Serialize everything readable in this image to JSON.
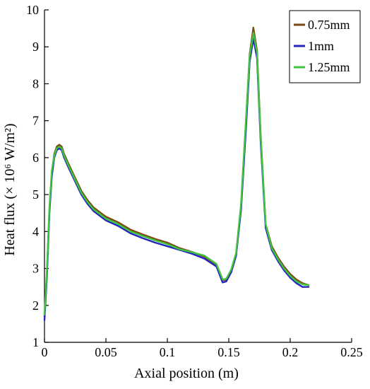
{
  "chart_data": {
    "type": "line",
    "xlabel": "Axial position (m)",
    "ylabel": "Heat flux (× 10⁶ W/m²)",
    "xlim": [
      0,
      0.25
    ],
    "ylim": [
      1,
      10
    ],
    "xticks": [
      0,
      0.05,
      0.1,
      0.15,
      0.2,
      0.25
    ],
    "xtick_labels": [
      "0",
      "0.05",
      "0.1",
      "0.15",
      "0.2",
      "0.25"
    ],
    "yticks": [
      1,
      2,
      3,
      4,
      5,
      6,
      7,
      8,
      9,
      10
    ],
    "ytick_labels": [
      "1",
      "2",
      "3",
      "4",
      "5",
      "6",
      "7",
      "8",
      "9",
      "10"
    ],
    "legend_position": "top-right",
    "series": [
      {
        "name": "0.75mm",
        "color": "#7b4a12",
        "x": [
          0,
          0.002,
          0.004,
          0.006,
          0.008,
          0.01,
          0.012,
          0.014,
          0.016,
          0.02,
          0.025,
          0.03,
          0.035,
          0.04,
          0.05,
          0.06,
          0.07,
          0.08,
          0.09,
          0.1,
          0.11,
          0.12,
          0.13,
          0.14,
          0.145,
          0.148,
          0.152,
          0.156,
          0.16,
          0.164,
          0.167,
          0.17,
          0.173,
          0.176,
          0.18,
          0.185,
          0.19,
          0.195,
          0.2,
          0.205,
          0.21,
          0.215
        ],
        "y": [
          1.7,
          2.9,
          4.6,
          5.6,
          6.1,
          6.3,
          6.35,
          6.3,
          6.1,
          5.8,
          5.45,
          5.1,
          4.85,
          4.65,
          4.4,
          4.25,
          4.05,
          3.92,
          3.8,
          3.7,
          3.55,
          3.45,
          3.32,
          3.1,
          2.68,
          2.7,
          2.95,
          3.4,
          4.7,
          7.0,
          8.8,
          9.52,
          8.9,
          6.6,
          4.2,
          3.6,
          3.3,
          3.05,
          2.85,
          2.7,
          2.6,
          2.55
        ]
      },
      {
        "name": "1mm",
        "color": "#2424c0",
        "x": [
          0,
          0.002,
          0.004,
          0.006,
          0.008,
          0.01,
          0.012,
          0.014,
          0.016,
          0.02,
          0.025,
          0.03,
          0.035,
          0.04,
          0.05,
          0.06,
          0.07,
          0.08,
          0.09,
          0.1,
          0.11,
          0.12,
          0.13,
          0.14,
          0.145,
          0.148,
          0.152,
          0.156,
          0.16,
          0.164,
          0.167,
          0.17,
          0.173,
          0.176,
          0.18,
          0.185,
          0.19,
          0.195,
          0.2,
          0.205,
          0.21,
          0.215
        ],
        "y": [
          1.6,
          2.8,
          4.5,
          5.5,
          6.0,
          6.2,
          6.25,
          6.2,
          6.0,
          5.7,
          5.35,
          5.0,
          4.75,
          4.55,
          4.3,
          4.15,
          3.95,
          3.82,
          3.7,
          3.6,
          3.5,
          3.4,
          3.27,
          3.05,
          2.62,
          2.65,
          2.9,
          3.35,
          4.6,
          6.8,
          8.6,
          9.22,
          8.7,
          6.4,
          4.1,
          3.5,
          3.2,
          2.95,
          2.75,
          2.6,
          2.5,
          2.5
        ]
      },
      {
        "name": "1.25mm",
        "color": "#3ec43e",
        "x": [
          0,
          0.002,
          0.004,
          0.006,
          0.008,
          0.01,
          0.012,
          0.014,
          0.016,
          0.02,
          0.025,
          0.03,
          0.035,
          0.04,
          0.05,
          0.06,
          0.07,
          0.08,
          0.09,
          0.1,
          0.11,
          0.12,
          0.13,
          0.14,
          0.145,
          0.148,
          0.152,
          0.156,
          0.16,
          0.164,
          0.167,
          0.17,
          0.173,
          0.176,
          0.18,
          0.185,
          0.19,
          0.195,
          0.2,
          0.205,
          0.21,
          0.215
        ],
        "y": [
          1.75,
          2.95,
          4.65,
          5.65,
          6.05,
          6.25,
          6.3,
          6.25,
          6.05,
          5.75,
          5.4,
          5.05,
          4.8,
          4.6,
          4.35,
          4.2,
          4.0,
          3.88,
          3.76,
          3.66,
          3.52,
          3.44,
          3.35,
          3.12,
          2.7,
          2.72,
          2.97,
          3.42,
          4.75,
          7.05,
          8.75,
          9.38,
          8.85,
          6.55,
          4.2,
          3.55,
          3.25,
          3.0,
          2.8,
          2.65,
          2.57,
          2.55
        ]
      }
    ]
  }
}
